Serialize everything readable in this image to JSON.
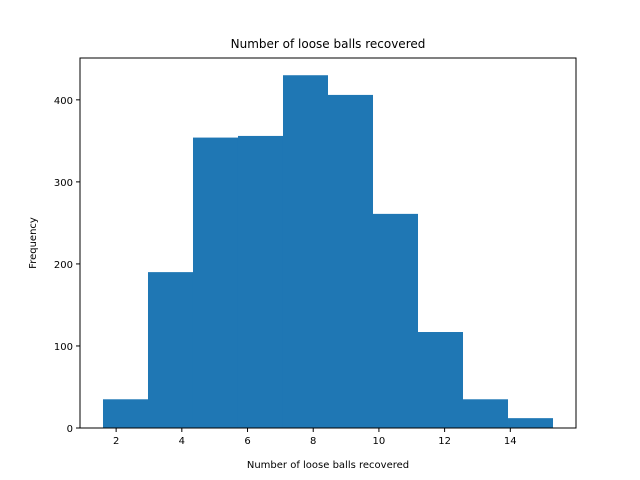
{
  "chart_data": {
    "type": "bar",
    "title": "Number of loose balls recovered",
    "xlabel": "Number of loose balls recovered",
    "ylabel": "Frequency",
    "bin_edges": [
      1.6,
      2.97,
      4.34,
      5.71,
      7.08,
      8.45,
      9.82,
      11.19,
      12.56,
      13.93,
      15.3
    ],
    "values": [
      35,
      190,
      354,
      356,
      430,
      406,
      261,
      117,
      35,
      12
    ],
    "xlim": [
      0.9,
      16.0
    ],
    "ylim": [
      0,
      451
    ],
    "xticks": [
      2,
      4,
      6,
      8,
      10,
      12,
      14
    ],
    "yticks": [
      0,
      100,
      200,
      300,
      400
    ],
    "grid": false,
    "bar_color": "#1f77b4"
  }
}
